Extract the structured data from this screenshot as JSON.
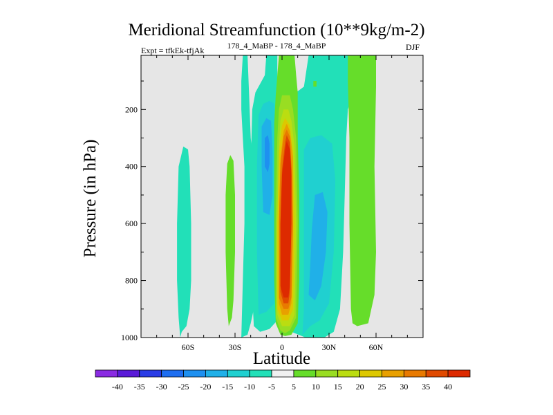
{
  "chart_data": {
    "type": "heatmap",
    "title": "Meridional Streamfunction (10**9kg/m-2)",
    "experiment_label": "Expt = tfkEk-tfjAk",
    "subtitle": "178_4_MaBP - 178_4_MaBP",
    "season": "DJF",
    "xlabel": "Latitude",
    "ylabel": "Pressure (in hPa)",
    "x_ticks": [
      {
        "value": -60,
        "label": "60S"
      },
      {
        "value": -30,
        "label": "30S"
      },
      {
        "value": 0,
        "label": "0"
      },
      {
        "value": 30,
        "label": "30N"
      },
      {
        "value": 60,
        "label": "60N"
      }
    ],
    "y_ticks": [
      {
        "value": 200,
        "label": "200"
      },
      {
        "value": 400,
        "label": "400"
      },
      {
        "value": 600,
        "label": "600"
      },
      {
        "value": 800,
        "label": "800"
      },
      {
        "value": 1000,
        "label": "1000"
      }
    ],
    "xlim": [
      -90,
      90
    ],
    "ylim": [
      1000,
      10
    ],
    "y_reversed": true,
    "background_color": "#e6e6e6",
    "levels": [
      -40,
      -35,
      -30,
      -25,
      -20,
      -15,
      -10,
      -5,
      5,
      10,
      15,
      20,
      25,
      30,
      35,
      40
    ],
    "colorbar_colors": [
      "#8a2be2",
      "#5a1ad8",
      "#2a3ce6",
      "#1e6ef0",
      "#1e90f0",
      "#20b0e8",
      "#20d0d0",
      "#22e0b8",
      "#f0f0f0",
      "#66dd2a",
      "#99dd22",
      "#bbdd11",
      "#ddc800",
      "#e8a000",
      "#e87a00",
      "#e04a00",
      "#dd2a00"
    ],
    "fill_colors": {
      "-20": "#1e90f0",
      "-15": "#20b0e8",
      "-10": "#20d0d0",
      "-5": "#22e0b8",
      "5": "#66dd2a",
      "10": "#99dd22",
      "15": "#bbdd11",
      "20": "#ddc800",
      "25": "#e8a000",
      "30": "#e87a00",
      "35": "#e04a00",
      "40": "#dd2a00"
    },
    "regions": [
      {
        "level": -5,
        "outline": [
          [
            -65,
            1000
          ],
          [
            -66,
            930
          ],
          [
            -67,
            800
          ],
          [
            -67,
            600
          ],
          [
            -66,
            400
          ],
          [
            -63,
            330
          ],
          [
            -60,
            340
          ],
          [
            -59,
            400
          ],
          [
            -58,
            600
          ],
          [
            -58,
            800
          ],
          [
            -59,
            900
          ],
          [
            -61,
            960
          ],
          [
            -64,
            980
          ]
        ]
      },
      {
        "level": 5,
        "outline": [
          [
            -34,
            960
          ],
          [
            -35,
            900
          ],
          [
            -36,
            700
          ],
          [
            -36,
            500
          ],
          [
            -35,
            390
          ],
          [
            -33,
            360
          ],
          [
            -31,
            380
          ],
          [
            -30,
            500
          ],
          [
            -30,
            700
          ],
          [
            -31,
            870
          ],
          [
            -32,
            930
          ]
        ]
      },
      {
        "level": -5,
        "outline": [
          [
            -26,
            1000
          ],
          [
            -25,
            800
          ],
          [
            -24,
            600
          ],
          [
            -24,
            400
          ],
          [
            -25,
            300
          ],
          [
            -26,
            200
          ],
          [
            -26,
            100
          ],
          [
            -25,
            10
          ],
          [
            -22,
            10
          ],
          [
            -21,
            150
          ],
          [
            -20,
            300
          ],
          [
            -18,
            400
          ],
          [
            -17,
            500
          ],
          [
            -16,
            600
          ],
          [
            -16,
            800
          ],
          [
            -18,
            900
          ],
          [
            -20,
            950
          ],
          [
            -22,
            990
          ]
        ]
      },
      {
        "level": -5,
        "outline": [
          [
            -18,
            960
          ],
          [
            -19,
            850
          ],
          [
            -20,
            600
          ],
          [
            -20,
            400
          ],
          [
            -19,
            200
          ],
          [
            -17,
            140
          ],
          [
            -14,
            110
          ],
          [
            -11,
            80
          ],
          [
            -10,
            10
          ],
          [
            -3,
            10
          ],
          [
            -3,
            200
          ],
          [
            -3,
            600
          ],
          [
            -3,
            940
          ],
          [
            -8,
            970
          ],
          [
            -14,
            980
          ]
        ]
      },
      {
        "level": -10,
        "outline": [
          [
            -15,
            920
          ],
          [
            -16,
            700
          ],
          [
            -16,
            400
          ],
          [
            -15,
            220
          ],
          [
            -12,
            180
          ],
          [
            -8,
            170
          ],
          [
            -5,
            180
          ],
          [
            -4,
            300
          ],
          [
            -4,
            600
          ],
          [
            -5,
            880
          ],
          [
            -10,
            910
          ]
        ]
      },
      {
        "level": -15,
        "outline": [
          [
            -12,
            560
          ],
          [
            -13,
            400
          ],
          [
            -13,
            260
          ],
          [
            -10,
            230
          ],
          [
            -7,
            240
          ],
          [
            -6,
            350
          ],
          [
            -6,
            500
          ],
          [
            -8,
            570
          ]
        ]
      },
      {
        "level": -20,
        "outline": [
          [
            -11,
            400
          ],
          [
            -11,
            300
          ],
          [
            -9,
            290
          ],
          [
            -8,
            320
          ],
          [
            -8,
            390
          ],
          [
            -9,
            420
          ]
        ]
      },
      {
        "level": -5,
        "outline": [
          [
            6,
            980
          ],
          [
            5,
            900
          ],
          [
            5,
            700
          ],
          [
            5,
            400
          ],
          [
            6,
            200
          ],
          [
            9,
            140
          ],
          [
            14,
            120
          ],
          [
            17,
            10
          ],
          [
            44,
            10
          ],
          [
            45,
            150
          ],
          [
            42,
            200
          ],
          [
            41,
            300
          ],
          [
            40,
            500
          ],
          [
            39,
            700
          ],
          [
            37,
            900
          ],
          [
            33,
            980
          ],
          [
            27,
            1000
          ],
          [
            15,
            1000
          ]
        ]
      },
      {
        "level": -10,
        "outline": [
          [
            13,
            990
          ],
          [
            14,
            900
          ],
          [
            14,
            700
          ],
          [
            14,
            500
          ],
          [
            14,
            340
          ],
          [
            18,
            300
          ],
          [
            25,
            290
          ],
          [
            32,
            320
          ],
          [
            34,
            450
          ],
          [
            33,
            700
          ],
          [
            30,
            880
          ],
          [
            24,
            940
          ],
          [
            18,
            960
          ]
        ]
      },
      {
        "level": -15,
        "outline": [
          [
            17,
            850
          ],
          [
            18,
            750
          ],
          [
            19,
            620
          ],
          [
            21,
            500
          ],
          [
            26,
            490
          ],
          [
            29,
            560
          ],
          [
            28,
            700
          ],
          [
            25,
            820
          ],
          [
            21,
            870
          ]
        ]
      },
      {
        "level": 5,
        "outline": [
          [
            20,
            120
          ],
          [
            20,
            100
          ],
          [
            22,
            100
          ],
          [
            22,
            120
          ]
        ]
      },
      {
        "level": 5,
        "outline": [
          [
            45,
            950
          ],
          [
            44,
            900
          ],
          [
            43,
            600
          ],
          [
            43,
            300
          ],
          [
            42,
            100
          ],
          [
            42,
            10
          ],
          [
            60,
            10
          ],
          [
            60,
            120
          ],
          [
            59,
            400
          ],
          [
            60,
            700
          ],
          [
            59,
            850
          ],
          [
            55,
            950
          ],
          [
            48,
            960
          ]
        ]
      },
      {
        "level": 5,
        "outline": [
          [
            -1,
            990
          ],
          [
            -4,
            950
          ],
          [
            -5,
            800
          ],
          [
            -5,
            600
          ],
          [
            -5,
            400
          ],
          [
            -5,
            250
          ],
          [
            -4,
            150
          ],
          [
            -3,
            80
          ],
          [
            -2,
            10
          ],
          [
            8,
            10
          ],
          [
            9,
            80
          ],
          [
            10,
            140
          ],
          [
            10,
            300
          ],
          [
            11,
            500
          ],
          [
            11,
            800
          ],
          [
            10,
            950
          ],
          [
            6,
            990
          ],
          [
            2,
            995
          ]
        ]
      },
      {
        "level": 10,
        "outline": [
          [
            -1,
            975
          ],
          [
            -4,
            930
          ],
          [
            -4,
            600
          ],
          [
            -3,
            300
          ],
          [
            -2,
            200
          ],
          [
            0,
            150
          ],
          [
            5,
            150
          ],
          [
            7,
            200
          ],
          [
            9,
            300
          ],
          [
            10,
            600
          ],
          [
            9,
            930
          ],
          [
            5,
            975
          ],
          [
            2,
            985
          ]
        ]
      },
      {
        "level": 15,
        "outline": [
          [
            0,
            960
          ],
          [
            -3,
            920
          ],
          [
            -3,
            600
          ],
          [
            -2,
            330
          ],
          [
            -1,
            240
          ],
          [
            1,
            200
          ],
          [
            4,
            200
          ],
          [
            6,
            240
          ],
          [
            8,
            330
          ],
          [
            9,
            600
          ],
          [
            8,
            920
          ],
          [
            5,
            960
          ]
        ]
      },
      {
        "level": 20,
        "outline": [
          [
            0,
            940
          ],
          [
            -3,
            900
          ],
          [
            -3,
            600
          ],
          [
            -2,
            350
          ],
          [
            0,
            255
          ],
          [
            2,
            230
          ],
          [
            5,
            255
          ],
          [
            7,
            350
          ],
          [
            8,
            600
          ],
          [
            7,
            900
          ],
          [
            4,
            940
          ]
        ]
      },
      {
        "level": 25,
        "outline": [
          [
            0,
            920
          ],
          [
            -2,
            880
          ],
          [
            -2,
            600
          ],
          [
            -1,
            370
          ],
          [
            1,
            275
          ],
          [
            3,
            250
          ],
          [
            5,
            275
          ],
          [
            7,
            370
          ],
          [
            7,
            600
          ],
          [
            6,
            880
          ],
          [
            4,
            920
          ]
        ]
      },
      {
        "level": 30,
        "outline": [
          [
            1,
            900
          ],
          [
            -2,
            860
          ],
          [
            -2,
            600
          ],
          [
            -1,
            390
          ],
          [
            1,
            295
          ],
          [
            3,
            270
          ],
          [
            5,
            295
          ],
          [
            6,
            390
          ],
          [
            7,
            600
          ],
          [
            6,
            860
          ],
          [
            4,
            900
          ]
        ]
      },
      {
        "level": 35,
        "outline": [
          [
            1,
            880
          ],
          [
            -1,
            840
          ],
          [
            -1,
            600
          ],
          [
            0,
            410
          ],
          [
            2,
            315
          ],
          [
            3,
            290
          ],
          [
            5,
            315
          ],
          [
            6,
            410
          ],
          [
            6,
            600
          ],
          [
            5,
            840
          ],
          [
            4,
            880
          ]
        ]
      },
      {
        "level": 40,
        "outline": [
          [
            1,
            860
          ],
          [
            -1,
            820
          ],
          [
            -1,
            600
          ],
          [
            0,
            430
          ],
          [
            2,
            340
          ],
          [
            3,
            310
          ],
          [
            5,
            340
          ],
          [
            6,
            430
          ],
          [
            6,
            600
          ],
          [
            5,
            820
          ],
          [
            4,
            860
          ]
        ]
      }
    ]
  }
}
